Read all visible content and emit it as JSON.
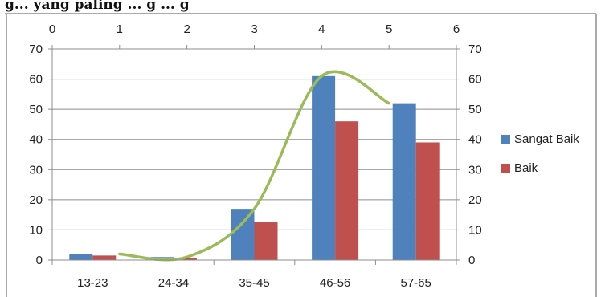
{
  "caption": "g... yang paling ... g ... g",
  "chart_data": {
    "type": "bar",
    "categories": [
      "13-23",
      "24-34",
      "35-45",
      "46-56",
      "57-65"
    ],
    "series": [
      {
        "name": "Sangat Baik",
        "values": [
          2,
          1,
          17,
          61,
          52
        ],
        "color": "#4F81BD"
      },
      {
        "name": "Baik",
        "values": [
          1.5,
          0.7,
          12.5,
          46,
          39
        ],
        "color": "#C0504D"
      }
    ],
    "trendline": {
      "color": "#9BBB59",
      "x": [
        1,
        2,
        3,
        4,
        5
      ],
      "y": [
        2,
        1,
        17,
        61,
        52
      ]
    },
    "ylim": [
      0,
      70
    ],
    "yticks": [
      0,
      10,
      20,
      30,
      40,
      50,
      60,
      70
    ],
    "secondary_x": {
      "xlim": [
        0,
        6
      ],
      "ticks": [
        0,
        1,
        2,
        3,
        4,
        5,
        6
      ]
    },
    "secondary_y": {
      "ylim": [
        0,
        70
      ],
      "ticks": [
        0,
        10,
        20,
        30,
        40,
        50,
        60,
        70
      ]
    },
    "grid": true,
    "legend_position": "right"
  }
}
